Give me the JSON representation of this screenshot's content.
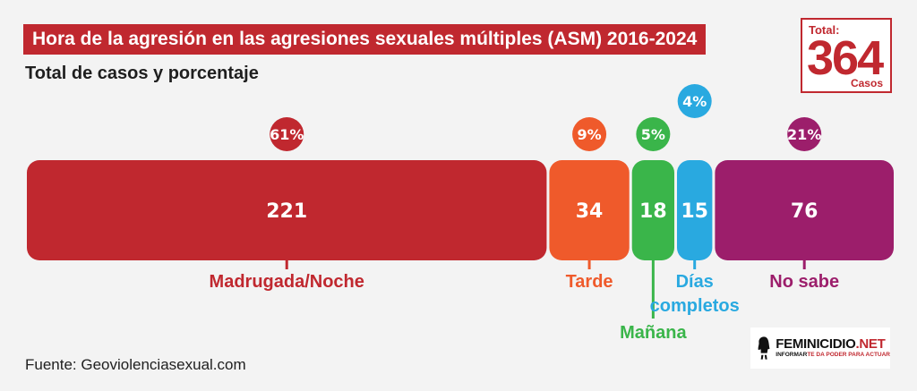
{
  "header": {
    "title": "Hora de la agresión en las agresiones sexuales múltiples (ASM) 2016-2024",
    "subtitle": "Total de casos y porcentaje"
  },
  "total": {
    "label": "Total:",
    "value": "364",
    "unit": "Casos"
  },
  "source": "Fuente: Geoviolenciasexual.com",
  "logo": {
    "name_main": "FEMINICIDIO",
    "name_suffix": ".NET",
    "tagline_main": "INFORMAR",
    "tagline_rest": "TE DA PODER PARA ACTUAR",
    "icon": "woman-silhouette-icon"
  },
  "chart_data": {
    "type": "bar",
    "orientation": "stacked-horizontal",
    "categories": [
      "Madrugada/Noche",
      "Tarde",
      "Mañana",
      "Días completos",
      "No sabe"
    ],
    "values": [
      221,
      34,
      18,
      15,
      76
    ],
    "value_labels": [
      "221",
      "34",
      "18",
      "15",
      "76"
    ],
    "percent_labels": [
      "61%",
      "9%",
      "5%",
      "4%",
      "21%"
    ],
    "colors": [
      "#c0282f",
      "#ef5a2b",
      "#3ab54a",
      "#29a9e0",
      "#9c1e6b"
    ],
    "total": 364
  }
}
